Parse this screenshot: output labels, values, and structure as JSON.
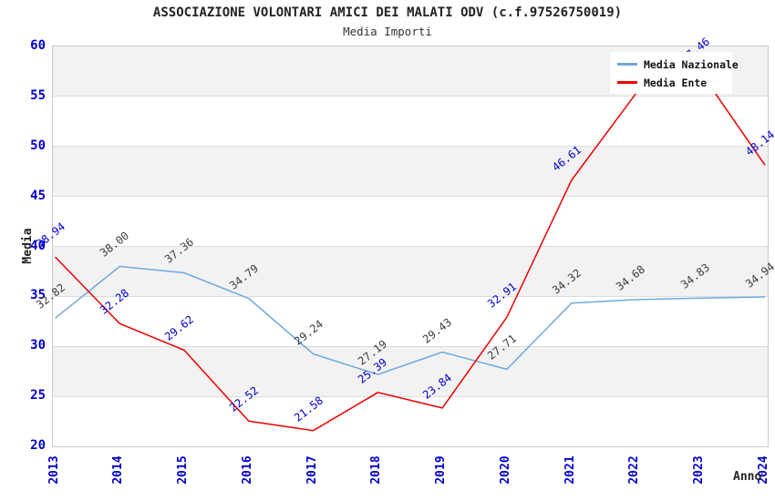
{
  "header": {
    "title": "ASSOCIAZIONE VOLONTARI AMICI DEI MALATI ODV (c.f.97526750019)",
    "subtitle": "Media Importi"
  },
  "axes": {
    "y_title": "Media",
    "x_title": "Anno",
    "y_ticks": [
      60,
      55,
      50,
      45,
      40,
      35,
      30,
      25,
      20
    ],
    "x_ticks": [
      "2013",
      "2014",
      "2015",
      "2016",
      "2017",
      "2018",
      "2019",
      "2020",
      "2021",
      "2022",
      "2023",
      "2024"
    ]
  },
  "legend": {
    "items": [
      {
        "label": "Media Nazionale",
        "color": "#6fa8dc"
      },
      {
        "label": "Media Ente",
        "color": "#ee0000"
      }
    ]
  },
  "colors": {
    "band_gray": "#f2f2f2",
    "band_white": "#ffffff",
    "gridline": "#dcdcdc",
    "plot_border": "#c9c9c9",
    "tick_blue": "#0000cc",
    "nazionale_line": "#6fa8dc",
    "ente_line": "#ee0000",
    "nazionale_label": "#3d3d3d",
    "ente_label": "#0000cc"
  },
  "chart_data": {
    "type": "line",
    "title": "ASSOCIAZIONE VOLONTARI AMICI DEI MALATI ODV (c.f.97526750019)",
    "subtitle": "Media Importi",
    "xlabel": "Anno",
    "ylabel": "Media",
    "ylim": [
      20,
      60
    ],
    "grid": true,
    "legend_position": "top-right",
    "band_step": 5,
    "categories": [
      "2013",
      "2014",
      "2015",
      "2016",
      "2017",
      "2018",
      "2019",
      "2020",
      "2021",
      "2022",
      "2023",
      "2024"
    ],
    "series": [
      {
        "name": "Media Nazionale",
        "color": "#6fa8dc",
        "label_color": "#3d3d3d",
        "values": [
          32.82,
          38.0,
          37.36,
          34.79,
          29.24,
          27.19,
          29.43,
          27.71,
          34.32,
          34.68,
          34.83,
          34.94
        ],
        "labels": [
          "32.82",
          "38.00",
          "37.36",
          "34.79",
          "29.24",
          "27.19",
          "29.43",
          "27.71",
          "34.32",
          "34.68",
          "34.83",
          "34.94"
        ]
      },
      {
        "name": "Media Ente",
        "color": "#ee0000",
        "label_color": "#0000cc",
        "values": [
          38.94,
          32.28,
          29.62,
          22.52,
          21.58,
          25.39,
          23.84,
          32.91,
          46.61,
          55.3,
          57.46,
          48.14
        ],
        "labels": [
          "38.94",
          "32.28",
          "29.62",
          "22.52",
          "21.58",
          "25.39",
          "23.84",
          "32.91",
          "46.61",
          "",
          "57.46",
          "48.14"
        ]
      }
    ]
  }
}
